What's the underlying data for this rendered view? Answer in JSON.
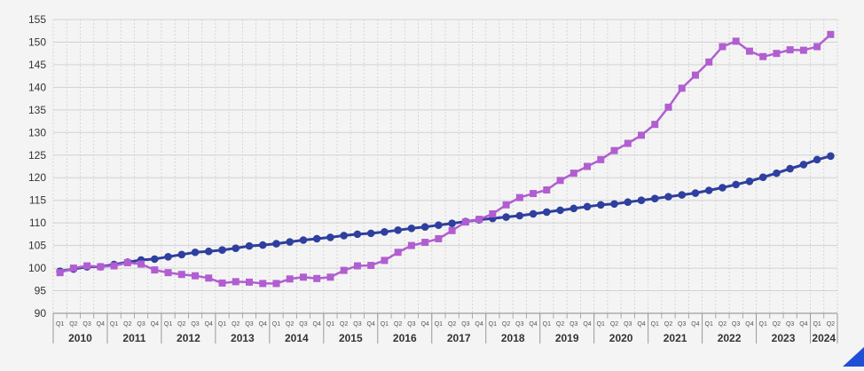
{
  "chart_data": {
    "type": "line",
    "title": "",
    "xlabel": "",
    "ylabel": "",
    "ylim": [
      90,
      155
    ],
    "yticks": [
      90,
      95,
      100,
      105,
      110,
      115,
      120,
      125,
      130,
      135,
      140,
      145,
      150,
      155
    ],
    "grid": true,
    "legend": "none",
    "quarter_labels": [
      "Q1",
      "Q2",
      "Q3",
      "Q4"
    ],
    "years": [
      "2010",
      "2011",
      "2012",
      "2013",
      "2014",
      "2015",
      "2016",
      "2017",
      "2018",
      "2019",
      "2020",
      "2021",
      "2022",
      "2023",
      "2024"
    ],
    "x": [
      "2010-Q1",
      "2010-Q2",
      "2010-Q3",
      "2010-Q4",
      "2011-Q1",
      "2011-Q2",
      "2011-Q3",
      "2011-Q4",
      "2012-Q1",
      "2012-Q2",
      "2012-Q3",
      "2012-Q4",
      "2013-Q1",
      "2013-Q2",
      "2013-Q3",
      "2013-Q4",
      "2014-Q1",
      "2014-Q2",
      "2014-Q3",
      "2014-Q4",
      "2015-Q1",
      "2015-Q2",
      "2015-Q3",
      "2015-Q4",
      "2016-Q1",
      "2016-Q2",
      "2016-Q3",
      "2016-Q4",
      "2017-Q1",
      "2017-Q2",
      "2017-Q3",
      "2017-Q4",
      "2018-Q1",
      "2018-Q2",
      "2018-Q3",
      "2018-Q4",
      "2019-Q1",
      "2019-Q2",
      "2019-Q3",
      "2019-Q4",
      "2020-Q1",
      "2020-Q2",
      "2020-Q3",
      "2020-Q4",
      "2021-Q1",
      "2021-Q2",
      "2021-Q3",
      "2021-Q4",
      "2022-Q1",
      "2022-Q2",
      "2022-Q3",
      "2022-Q4",
      "2023-Q1",
      "2023-Q2",
      "2023-Q3",
      "2023-Q4",
      "2024-Q1",
      "2024-Q2"
    ],
    "series": [
      {
        "color": "#2e3f9e",
        "marker": "circle",
        "values": [
          99.3,
          99.8,
          100.3,
          100.3,
          100.8,
          101.3,
          101.8,
          102.0,
          102.5,
          103.0,
          103.5,
          103.7,
          104.0,
          104.4,
          104.9,
          105.1,
          105.4,
          105.8,
          106.2,
          106.5,
          106.8,
          107.2,
          107.5,
          107.7,
          108.0,
          108.4,
          108.8,
          109.1,
          109.5,
          109.9,
          110.3,
          110.7,
          111.0,
          111.3,
          111.6,
          112.0,
          112.4,
          112.8,
          113.2,
          113.6,
          114.0,
          114.2,
          114.6,
          115.0,
          115.4,
          115.8,
          116.2,
          116.6,
          117.2,
          117.8,
          118.5,
          119.2,
          120.1,
          121.0,
          122.0,
          122.9,
          124.0,
          124.8
        ]
      },
      {
        "color": "#b15ed0",
        "marker": "square",
        "values": [
          99.0,
          100.0,
          100.5,
          100.3,
          100.5,
          101.2,
          100.9,
          99.6,
          99.0,
          98.6,
          98.3,
          97.8,
          96.7,
          97.0,
          96.9,
          96.6,
          96.6,
          97.6,
          98.0,
          97.7,
          98.0,
          99.5,
          100.5,
          100.6,
          101.7,
          103.5,
          105.0,
          105.7,
          106.5,
          108.3,
          110.2,
          110.8,
          112.0,
          114.0,
          115.6,
          116.5,
          117.3,
          119.4,
          121.0,
          122.5,
          124.0,
          126.0,
          127.6,
          129.4,
          131.8,
          135.6,
          139.8,
          142.7,
          145.6,
          149.0,
          150.2,
          148.0,
          146.8,
          147.5,
          148.3,
          148.2,
          149.0,
          151.7
        ]
      }
    ]
  },
  "brand_accent": "#1e4fd6"
}
